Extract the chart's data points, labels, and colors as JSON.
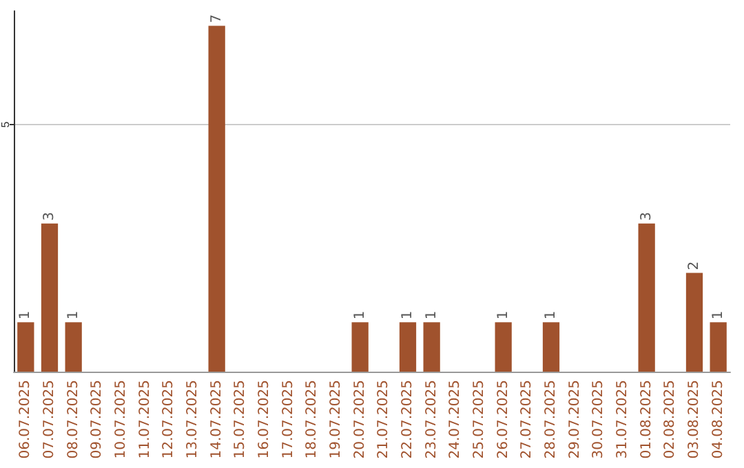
{
  "chart_data": {
    "type": "bar",
    "categories": [
      "06.07.2025",
      "07.07.2025",
      "08.07.2025",
      "09.07.2025",
      "10.07.2025",
      "11.07.2025",
      "12.07.2025",
      "13.07.2025",
      "14.07.2025",
      "15.07.2025",
      "16.07.2025",
      "17.07.2025",
      "18.07.2025",
      "19.07.2025",
      "20.07.2025",
      "21.07.2025",
      "22.07.2025",
      "23.07.2025",
      "24.07.2025",
      "25.07.2025",
      "26.07.2025",
      "27.07.2025",
      "28.07.2025",
      "29.07.2025",
      "30.07.2025",
      "31.07.2025",
      "01.08.2025",
      "02.08.2025",
      "03.08.2025",
      "04.08.2025"
    ],
    "values": [
      1,
      3,
      1,
      0,
      0,
      0,
      0,
      0,
      7,
      0,
      0,
      0,
      0,
      0,
      1,
      0,
      1,
      1,
      0,
      0,
      1,
      0,
      1,
      0,
      0,
      0,
      3,
      0,
      2,
      1
    ],
    "value_labels": [
      "1",
      "3",
      "1",
      null,
      null,
      null,
      null,
      null,
      "7",
      null,
      null,
      null,
      null,
      null,
      "1",
      null,
      "1",
      "1",
      null,
      null,
      "1",
      null,
      "1",
      null,
      null,
      null,
      "3",
      null,
      "2",
      "1"
    ],
    "color": "#a0522d",
    "ylim": [
      0,
      7.3
    ],
    "yticks": [
      5
    ],
    "grid": "y"
  }
}
